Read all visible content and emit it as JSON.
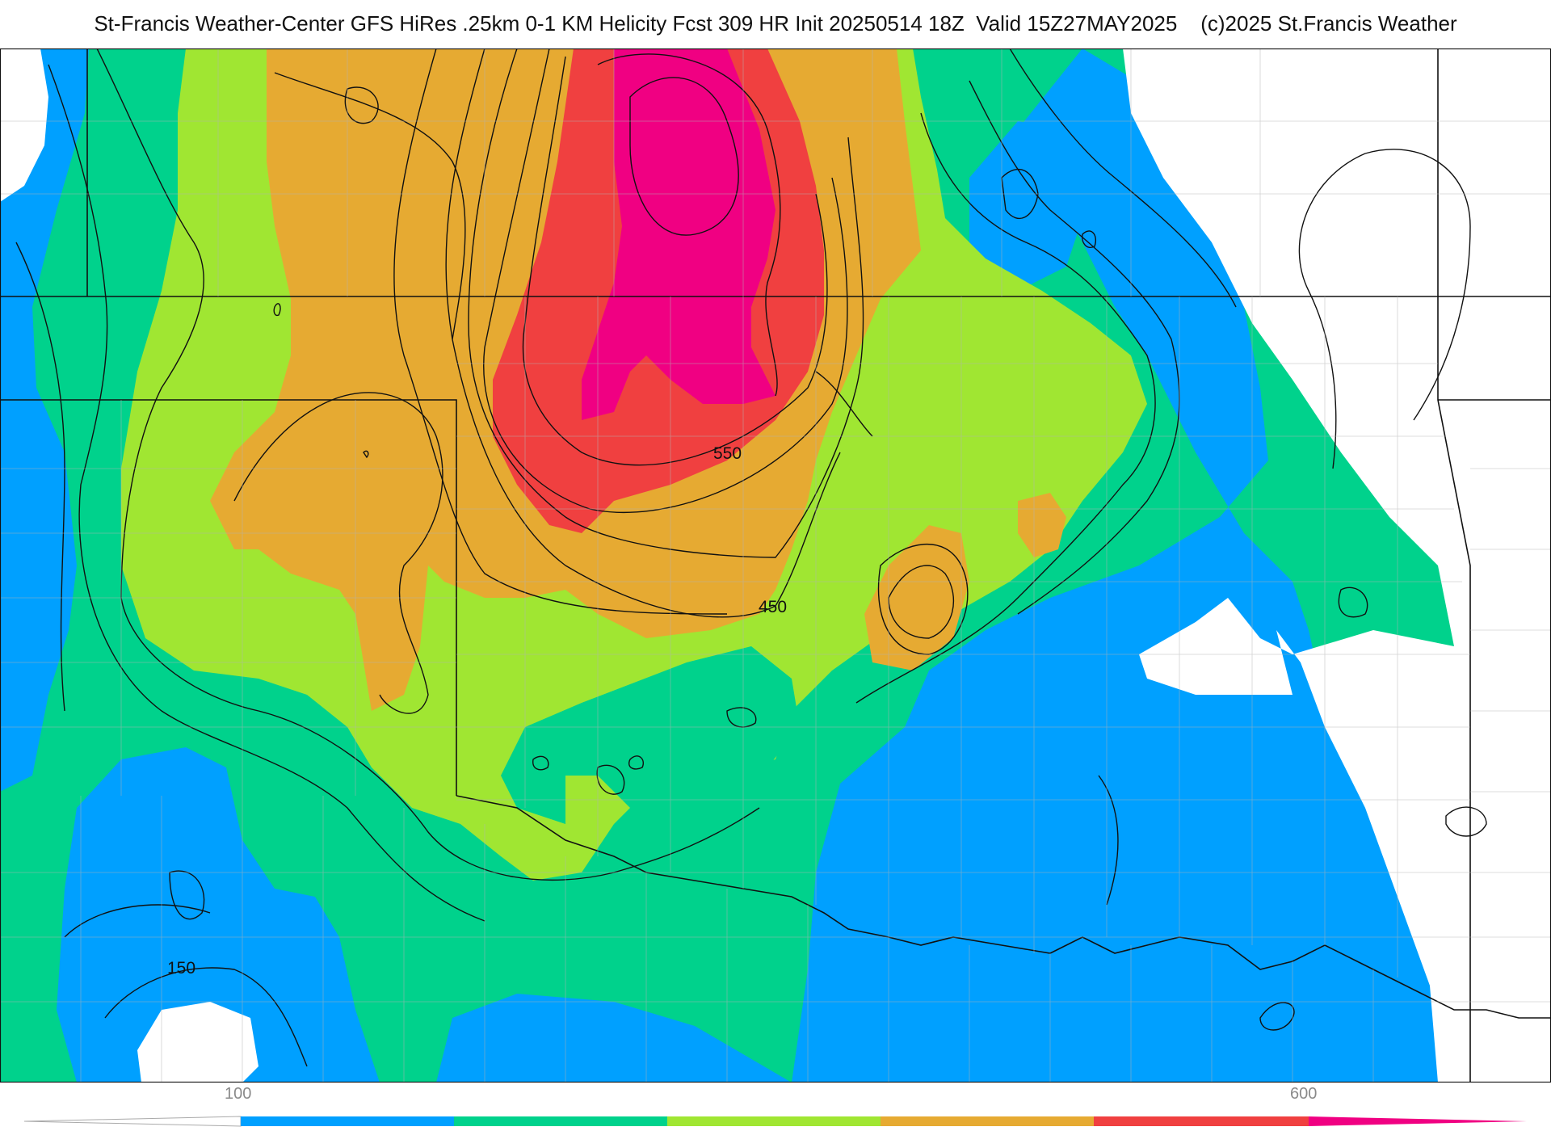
{
  "title": "St-Francis Weather-Center GFS HiRes .25km 0-1 KM Helicity Fcst 309 HR Init 20250514 18Z  Valid 15Z27MAY2025    (c)2025 St.Francis Weather",
  "colorbar": {
    "tick_labels": [
      "100",
      "600"
    ],
    "bins": [
      {
        "range": "<100",
        "color": "#ffffff"
      },
      {
        "range": "100-200",
        "color": "#00a0ff"
      },
      {
        "range": "200-300",
        "color": "#00d28c"
      },
      {
        "range": "300-400",
        "color": "#a0e632"
      },
      {
        "range": "400-500",
        "color": "#e6aa32"
      },
      {
        "range": "500-600",
        "color": "#f04040"
      },
      {
        "range": ">600",
        "color": "#f00082"
      }
    ]
  },
  "contour_labels": [
    "550",
    "450",
    "150"
  ],
  "colors": {
    "white": "#ffffff",
    "blue": "#00a0ff",
    "teal": "#00d28c",
    "lime": "#a0e632",
    "orange": "#e6aa32",
    "red": "#f04040",
    "magenta": "#f00082",
    "border": "#111111",
    "county": "#b4b4b4"
  }
}
